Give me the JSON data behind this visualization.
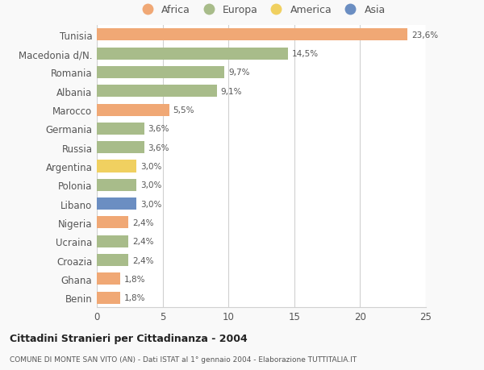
{
  "countries": [
    "Tunisia",
    "Macedonia d/N.",
    "Romania",
    "Albania",
    "Marocco",
    "Germania",
    "Russia",
    "Argentina",
    "Polonia",
    "Libano",
    "Nigeria",
    "Ucraina",
    "Croazia",
    "Ghana",
    "Benin"
  ],
  "values": [
    23.6,
    14.5,
    9.7,
    9.1,
    5.5,
    3.6,
    3.6,
    3.0,
    3.0,
    3.0,
    2.4,
    2.4,
    2.4,
    1.8,
    1.8
  ],
  "labels": [
    "23,6%",
    "14,5%",
    "9,7%",
    "9,1%",
    "5,5%",
    "3,6%",
    "3,6%",
    "3,0%",
    "3,0%",
    "3,0%",
    "2,4%",
    "2,4%",
    "2,4%",
    "1,8%",
    "1,8%"
  ],
  "continents": [
    "Africa",
    "Europa",
    "Europa",
    "Europa",
    "Africa",
    "Europa",
    "Europa",
    "America",
    "Europa",
    "Asia",
    "Africa",
    "Europa",
    "Europa",
    "Africa",
    "Africa"
  ],
  "colors": {
    "Africa": "#F0A875",
    "Europa": "#A8BC8A",
    "America": "#F0D060",
    "Asia": "#6B8EC2"
  },
  "legend_order": [
    "Africa",
    "Europa",
    "America",
    "Asia"
  ],
  "title_bold": "Cittadini Stranieri per Cittadinanza - 2004",
  "subtitle": "COMUNE DI MONTE SAN VITO (AN) - Dati ISTAT al 1° gennaio 2004 - Elaborazione TUTTITALIA.IT",
  "xlim": [
    0,
    25
  ],
  "xticks": [
    0,
    5,
    10,
    15,
    20,
    25
  ],
  "background_color": "#f9f9f9",
  "bar_background": "#ffffff",
  "grid_color": "#d0d0d0"
}
